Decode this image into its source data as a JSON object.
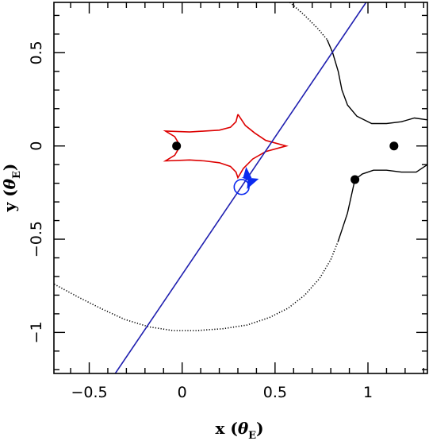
{
  "chart_data": {
    "type": "scatter",
    "title": "",
    "xlabel": {
      "main": "x (",
      "symbol": "θ",
      "sub": "E",
      "close": ")"
    },
    "ylabel": {
      "main": "y (",
      "symbol": "θ",
      "sub": "E",
      "close": ")"
    },
    "xlim": [
      -0.69,
      1.32
    ],
    "ylim": [
      -1.22,
      0.77
    ],
    "x_ticks": [
      {
        "value": -0.5,
        "label": "−0.5"
      },
      {
        "value": 0,
        "label": "0"
      },
      {
        "value": 0.5,
        "label": "0.5"
      },
      {
        "value": 1,
        "label": "1"
      }
    ],
    "y_ticks": [
      {
        "value": -1,
        "label": "−1"
      },
      {
        "value": -0.5,
        "label": "−0.5"
      },
      {
        "value": 0,
        "label": "0"
      },
      {
        "value": 0.5,
        "label": "0.5"
      }
    ],
    "x_minor_step": 0.1,
    "y_minor_step": 0.1,
    "grid": false,
    "colors": {
      "caustic": "#dd0000",
      "trajectory": "#2020b0",
      "source": "#0b2af0",
      "critical_curve": "#000000",
      "lens": "#000000"
    },
    "lens_positions": [
      {
        "x": -0.03,
        "y": 0.0
      },
      {
        "x": 1.14,
        "y": 0.0
      },
      {
        "x": 0.93,
        "y": -0.18
      }
    ],
    "source_trajectory": [
      {
        "x": -0.36,
        "y": -1.22
      },
      {
        "x": 0.99,
        "y": 0.77
      }
    ],
    "source_circle": {
      "x": 0.32,
      "y": -0.22,
      "r": 0.04
    },
    "source_marker": {
      "x": 0.37,
      "y": -0.18
    },
    "caustic": [
      {
        "x": 0.3,
        "y": 0.17
      },
      {
        "x": 0.29,
        "y": 0.13
      },
      {
        "x": 0.26,
        "y": 0.1
      },
      {
        "x": 0.2,
        "y": 0.085
      },
      {
        "x": 0.12,
        "y": 0.08
      },
      {
        "x": 0.04,
        "y": 0.075
      },
      {
        "x": -0.09,
        "y": 0.08
      },
      {
        "x": -0.04,
        "y": 0.05
      },
      {
        "x": -0.01,
        "y": 0.0
      },
      {
        "x": -0.04,
        "y": -0.05
      },
      {
        "x": -0.09,
        "y": -0.08
      },
      {
        "x": 0.04,
        "y": -0.075
      },
      {
        "x": 0.12,
        "y": -0.08
      },
      {
        "x": 0.2,
        "y": -0.09
      },
      {
        "x": 0.26,
        "y": -0.11
      },
      {
        "x": 0.29,
        "y": -0.14
      },
      {
        "x": 0.3,
        "y": -0.17
      },
      {
        "x": 0.33,
        "y": -0.12
      },
      {
        "x": 0.38,
        "y": -0.07
      },
      {
        "x": 0.45,
        "y": -0.03
      },
      {
        "x": 0.56,
        "y": 0.0
      },
      {
        "x": 0.45,
        "y": 0.03
      },
      {
        "x": 0.39,
        "y": 0.07
      },
      {
        "x": 0.34,
        "y": 0.11
      },
      {
        "x": 0.3,
        "y": 0.17
      }
    ],
    "critical_curve_solid": [
      {
        "x": 0.78,
        "y": 0.57
      },
      {
        "x": 0.81,
        "y": 0.5
      },
      {
        "x": 0.84,
        "y": 0.4
      },
      {
        "x": 0.86,
        "y": 0.3
      },
      {
        "x": 0.89,
        "y": 0.22
      },
      {
        "x": 0.94,
        "y": 0.16
      },
      {
        "x": 1.02,
        "y": 0.12
      },
      {
        "x": 1.1,
        "y": 0.12
      },
      {
        "x": 1.18,
        "y": 0.13
      },
      {
        "x": 1.25,
        "y": 0.15
      },
      {
        "x": 1.32,
        "y": 0.14
      }
    ],
    "critical_curve_solid_2": [
      {
        "x": 1.32,
        "y": -0.1
      },
      {
        "x": 1.26,
        "y": -0.14
      },
      {
        "x": 1.18,
        "y": -0.14
      },
      {
        "x": 1.1,
        "y": -0.13
      },
      {
        "x": 1.03,
        "y": -0.13
      },
      {
        "x": 0.97,
        "y": -0.15
      },
      {
        "x": 0.93,
        "y": -0.18
      },
      {
        "x": 0.91,
        "y": -0.27
      },
      {
        "x": 0.89,
        "y": -0.36
      },
      {
        "x": 0.86,
        "y": -0.45
      },
      {
        "x": 0.84,
        "y": -0.51
      }
    ],
    "critical_curve_dotted_outer": [
      {
        "x": 0.58,
        "y": 0.77
      },
      {
        "x": 0.66,
        "y": 0.7
      },
      {
        "x": 0.73,
        "y": 0.63
      },
      {
        "x": 0.78,
        "y": 0.57
      }
    ],
    "critical_curve_dotted_lower": [
      {
        "x": 0.84,
        "y": -0.51
      },
      {
        "x": 0.8,
        "y": -0.61
      },
      {
        "x": 0.74,
        "y": -0.71
      },
      {
        "x": 0.66,
        "y": -0.8
      },
      {
        "x": 0.57,
        "y": -0.87
      },
      {
        "x": 0.47,
        "y": -0.92
      },
      {
        "x": 0.35,
        "y": -0.96
      },
      {
        "x": 0.22,
        "y": -0.98
      },
      {
        "x": 0.08,
        "y": -0.99
      },
      {
        "x": -0.05,
        "y": -0.99
      },
      {
        "x": -0.18,
        "y": -0.97
      },
      {
        "x": -0.31,
        "y": -0.93
      },
      {
        "x": -0.44,
        "y": -0.87
      },
      {
        "x": -0.56,
        "y": -0.81
      },
      {
        "x": -0.69,
        "y": -0.74
      }
    ]
  }
}
